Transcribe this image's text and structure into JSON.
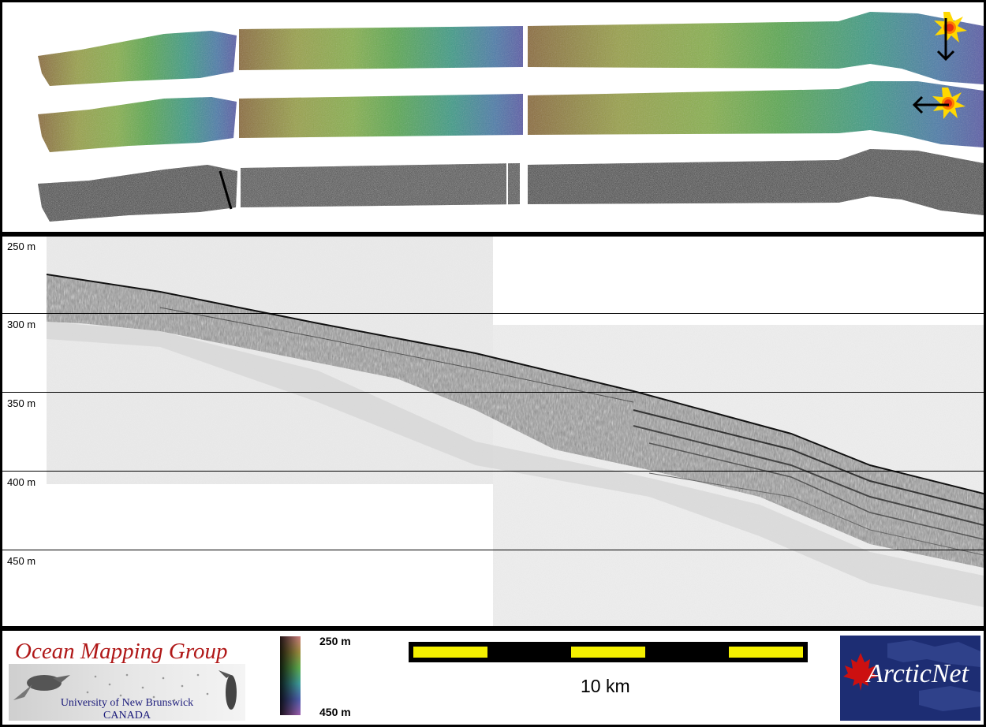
{
  "depth_labels": [
    "250 m",
    "300 m",
    "350 m",
    "400 m",
    "450 m"
  ],
  "footer": {
    "org_name": "Ocean Mapping Group",
    "org_university": "University of New Brunswick",
    "org_country": "CANADA",
    "colorbar_top": "250 m",
    "colorbar_bottom": "450 m",
    "scale_label": "10 km",
    "partner_logo_text": "ArcticNet"
  },
  "colors": {
    "background": "#000000",
    "scale_yellow": "#f4f000",
    "omg_red": "#b01818",
    "omg_blue": "#1a1a7a",
    "arcticnet_navy": "#1d2d73",
    "maple_red": "#cc1010"
  },
  "icons": [
    "sun-illumination-icon",
    "arrow-down-icon",
    "arrow-left-icon",
    "maple-leaf-icon",
    "hagfish-icon",
    "fish-icon"
  ]
}
